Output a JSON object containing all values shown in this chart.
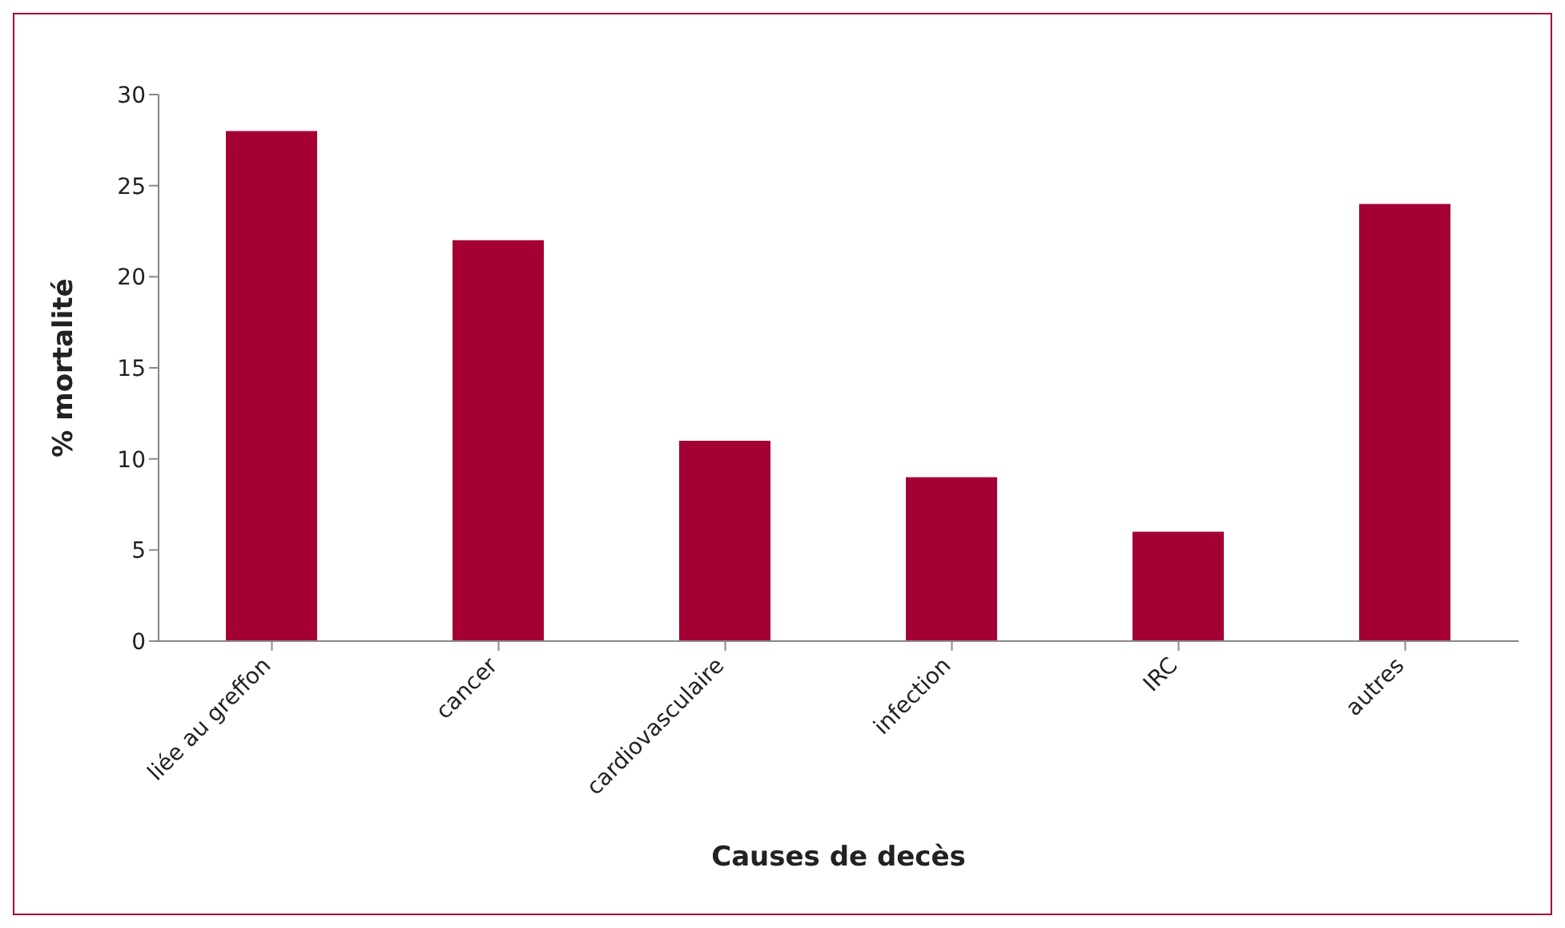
{
  "chart_data": {
    "type": "bar",
    "xlabel": "Causes de decès",
    "ylabel": "% mortalité",
    "categories": [
      "liée au greffon",
      "cancer",
      "cardiovasculaire",
      "infection",
      "IRC",
      "autres"
    ],
    "values": [
      28,
      22,
      11,
      9,
      6,
      24
    ],
    "color": "#a50034",
    "ylim": [
      0,
      30
    ],
    "yticks": [
      0,
      5,
      10,
      15,
      20,
      25,
      30
    ],
    "grid": false,
    "legend": false
  }
}
